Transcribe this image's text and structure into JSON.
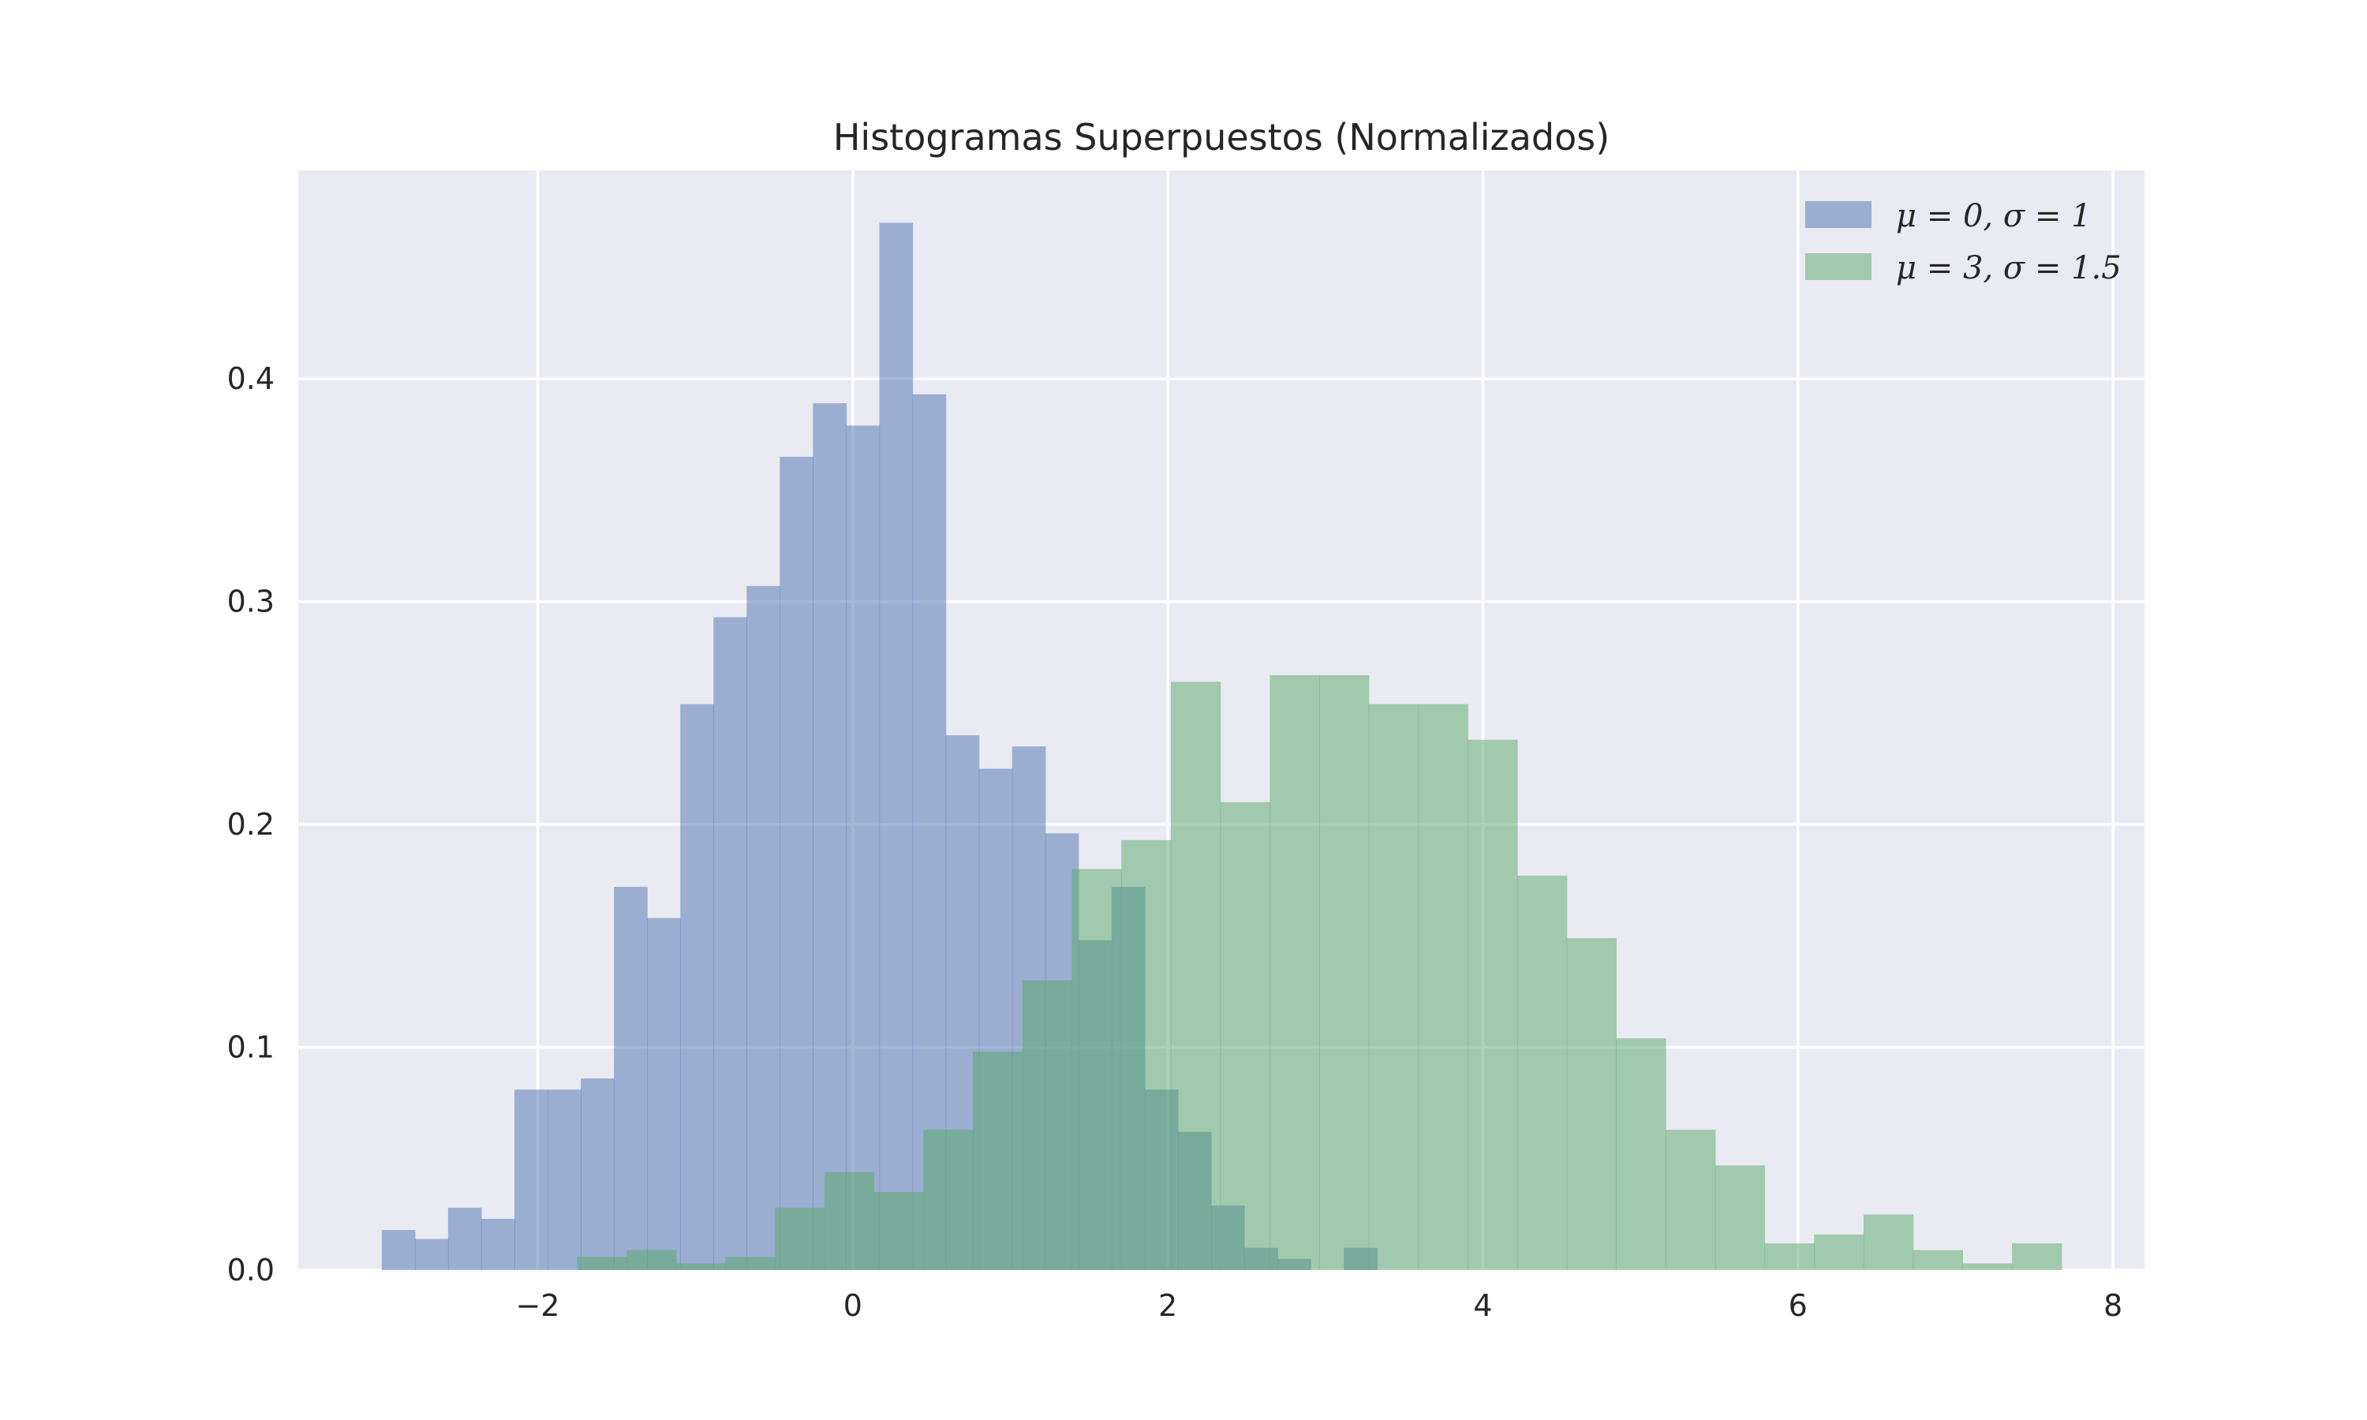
{
  "chart_data": {
    "type": "bar",
    "title": "Histogramas Superpuestos (Normalizados)",
    "xlabel": "",
    "ylabel": "",
    "xlim": [
      -3.52,
      8.2
    ],
    "ylim": [
      0,
      0.4935
    ],
    "xticks": [
      -2,
      0,
      2,
      4,
      6,
      8
    ],
    "xtick_labels": [
      "−2",
      "0",
      "2",
      "4",
      "6",
      "8"
    ],
    "yticks": [
      0.0,
      0.1,
      0.2,
      0.3,
      0.4
    ],
    "ytick_labels": [
      "0.0",
      "0.1",
      "0.2",
      "0.3",
      "0.4"
    ],
    "grid": true,
    "legend_position": "top-right",
    "colors": {
      "background": "#eaeaf2",
      "grid": "#ffffff",
      "series1": "#4c72b0",
      "series2": "#55a868"
    },
    "series": [
      {
        "name": "μ = 0, σ = 1",
        "color": "#4c72b0",
        "opacity": 0.5,
        "bin_start": -2.99,
        "bin_width": 0.2106,
        "values": [
          0.018,
          0.014,
          0.028,
          0.023,
          0.081,
          0.081,
          0.086,
          0.172,
          0.158,
          0.254,
          0.293,
          0.307,
          0.365,
          0.389,
          0.379,
          0.47,
          0.393,
          0.24,
          0.225,
          0.235,
          0.196,
          0.148,
          0.172,
          0.081,
          0.062,
          0.029,
          0.01,
          0.005,
          0.0,
          0.01
        ]
      },
      {
        "name": "μ = 3, σ = 1.5",
        "color": "#55a868",
        "opacity": 0.5,
        "bin_start": -1.75,
        "bin_width": 0.3141,
        "values": [
          0.006,
          0.009,
          0.003,
          0.006,
          0.028,
          0.044,
          0.035,
          0.063,
          0.098,
          0.13,
          0.18,
          0.193,
          0.264,
          0.21,
          0.267,
          0.267,
          0.254,
          0.254,
          0.238,
          0.177,
          0.149,
          0.104,
          0.063,
          0.047,
          0.012,
          0.016,
          0.025,
          0.009,
          0.003,
          0.012
        ]
      }
    ]
  }
}
